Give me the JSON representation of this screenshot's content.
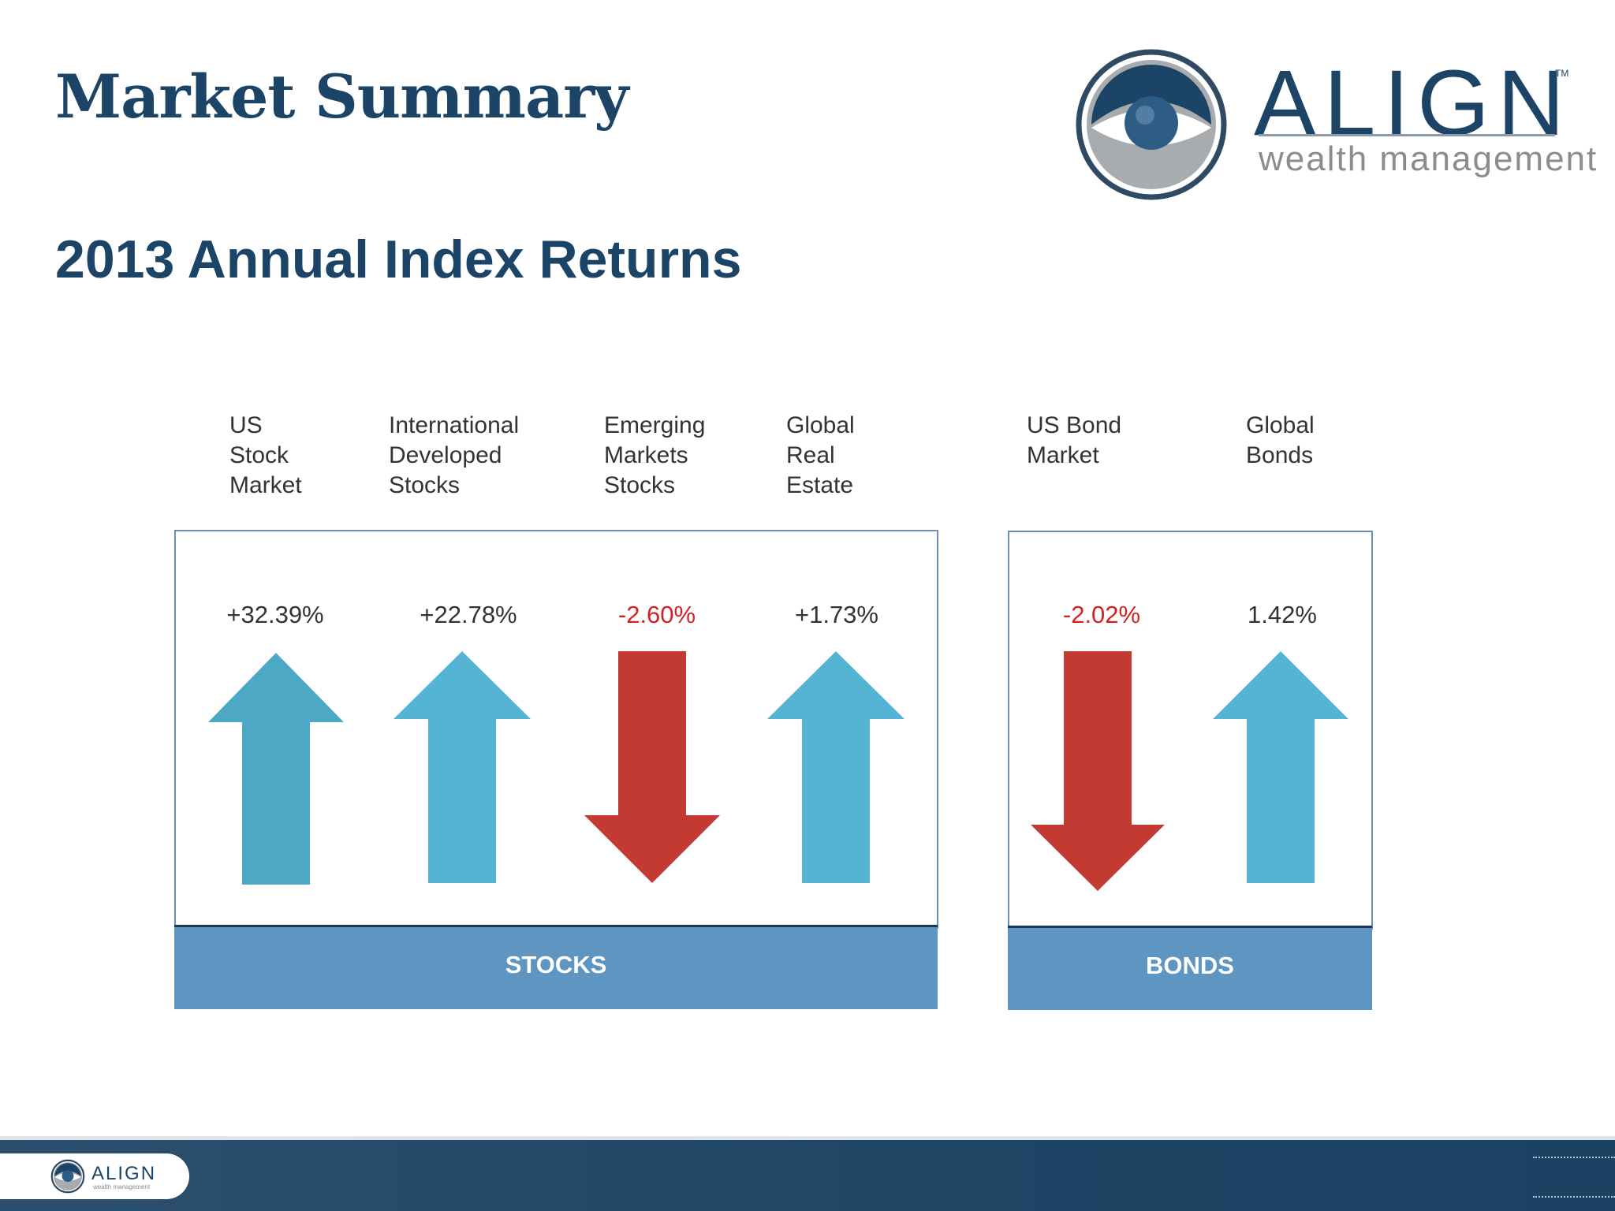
{
  "header": {
    "title": "Market Summary",
    "subtitle": "2013 Annual Index Returns"
  },
  "logo": {
    "wordmark": "ALIGN",
    "tagline": "wealth management",
    "trademark": "TM",
    "icon": "align-eye-logo-icon"
  },
  "groups": [
    {
      "label": "STOCKS",
      "items": [
        {
          "label": "US\nStock\nMarket",
          "return_text": "+32.39%",
          "return_value": 32.39,
          "direction": "up"
        },
        {
          "label": "International\nDeveloped\nStocks",
          "return_text": "+22.78%",
          "return_value": 22.78,
          "direction": "up"
        },
        {
          "label": "Emerging\nMarkets\nStocks",
          "return_text": "-2.60%",
          "return_value": -2.6,
          "direction": "down"
        },
        {
          "label": "Global\nReal\nEstate",
          "return_text": "+1.73%",
          "return_value": 1.73,
          "direction": "up"
        }
      ]
    },
    {
      "label": "BONDS",
      "items": [
        {
          "label": "US Bond\nMarket",
          "return_text": "-2.02%",
          "return_value": -2.02,
          "direction": "down"
        },
        {
          "label": "Global\nBonds",
          "return_text": "1.42%",
          "return_value": 1.42,
          "direction": "up"
        }
      ]
    }
  ],
  "colors": {
    "up_arrow": "#55b4d4",
    "up_arrow_first": "#4da8c6",
    "down_arrow": "#c23a32",
    "negative_text": "#d42020",
    "brand_navy": "#1b4466",
    "group_bar": "#5f95c1"
  },
  "footer": {
    "wordmark": "ALIGN",
    "tagline": "wealth management"
  }
}
